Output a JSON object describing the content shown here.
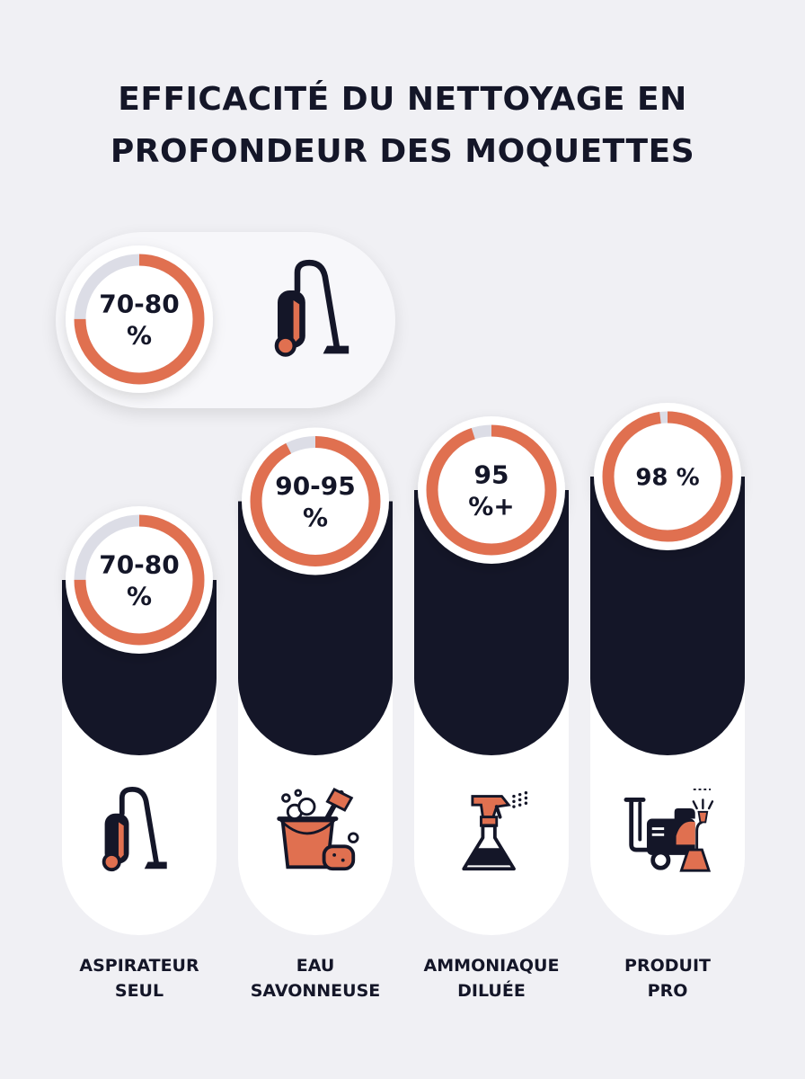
{
  "title": [
    "EFFICACITÉ DU NETTOYAGE EN",
    "PROFONDEUR DES MOQUETTES"
  ],
  "colors": {
    "background": "#f0f0f4",
    "bar": "#141628",
    "accent": "#e07050",
    "ring_track": "#dcdde6",
    "card": "#ffffff",
    "text": "#141628"
  },
  "legend_inset": {
    "value_label": [
      "70-80",
      "%"
    ],
    "icon": "vacuum-cleaner-icon"
  },
  "chart_data": {
    "type": "bar",
    "categories": [
      [
        "ASPIRATEUR",
        "SEUL"
      ],
      [
        "EAU",
        "SAVONNEUSE"
      ],
      [
        "AMMONIAQUE",
        "DILUÉE"
      ],
      [
        "PRODUIT",
        "PRO"
      ]
    ],
    "values": [
      75,
      92.5,
      95,
      98
    ],
    "value_labels": [
      [
        "70-80",
        "%"
      ],
      [
        "90-95",
        "%"
      ],
      [
        "95",
        "%+"
      ],
      [
        "98 %"
      ]
    ],
    "icons": [
      "vacuum-cleaner-icon",
      "bucket-sponge-icon",
      "spray-bottle-icon",
      "carpet-extractor-icon"
    ],
    "ylim": [
      0,
      100
    ],
    "grid": false,
    "legend": "top-left"
  }
}
